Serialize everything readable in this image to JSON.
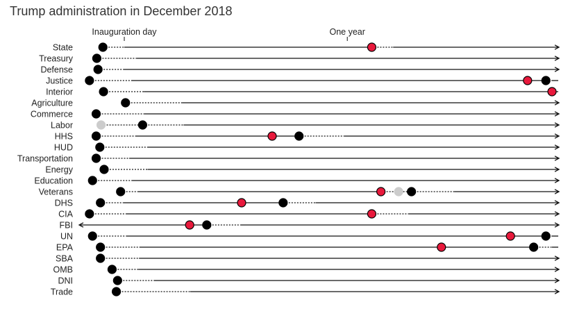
{
  "title": "Trump administration in December 2018",
  "colors": {
    "nominee": "#000000",
    "departed": "#e8193c",
    "acting": "#cccccc",
    "line": "#111111"
  },
  "chart_data": {
    "type": "timeline",
    "title": "Trump administration in December 2018",
    "x_unit": "days since inauguration",
    "xlim": [
      -30,
      700
    ],
    "reference_marks": [
      {
        "label": "Inauguration day",
        "x": 0
      },
      {
        "label": "One year",
        "x": 365
      }
    ],
    "rows": [
      {
        "agency": "State",
        "start": -35,
        "events": [
          {
            "type": "nominee",
            "x": -35
          },
          {
            "type": "departed",
            "x": 405
          }
        ],
        "dotted": [
          [
            -35,
            0
          ],
          [
            405,
            440
          ]
        ],
        "arrow_right": true
      },
      {
        "agency": "Treasury",
        "start": -45,
        "events": [
          {
            "type": "nominee",
            "x": -45
          }
        ],
        "dotted": [
          [
            -45,
            20
          ]
        ],
        "arrow_right": true
      },
      {
        "agency": "Defense",
        "start": -43,
        "events": [
          {
            "type": "nominee",
            "x": -43
          }
        ],
        "dotted": [
          [
            -43,
            -2
          ]
        ],
        "arrow_right": true
      },
      {
        "agency": "Justice",
        "start": -57,
        "events": [
          {
            "type": "nominee",
            "x": -57
          },
          {
            "type": "departed",
            "x": 660
          },
          {
            "type": "nominee",
            "x": 690
          }
        ],
        "dotted": [
          [
            -57,
            12
          ],
          [
            690,
            700
          ]
        ],
        "arrow_right": false
      },
      {
        "agency": "Interior",
        "start": -34,
        "events": [
          {
            "type": "nominee",
            "x": -34
          },
          {
            "type": "departed",
            "x": 700
          }
        ],
        "dotted": [
          [
            -34,
            32
          ]
        ],
        "arrow_right": false
      },
      {
        "agency": "Agriculture",
        "start": 2,
        "events": [
          {
            "type": "nominee",
            "x": 2
          }
        ],
        "dotted": [
          [
            2,
            95
          ]
        ],
        "arrow_right": true
      },
      {
        "agency": "Commerce",
        "start": -46,
        "events": [
          {
            "type": "nominee",
            "x": -46
          }
        ],
        "dotted": [
          [
            -46,
            32
          ]
        ],
        "arrow_right": true
      },
      {
        "agency": "Labor",
        "start": -38,
        "events": [
          {
            "type": "acting",
            "x": -38
          },
          {
            "type": "nominee",
            "x": 30
          }
        ],
        "dotted": [
          [
            -38,
            30
          ],
          [
            30,
            97
          ]
        ],
        "arrow_right": true
      },
      {
        "agency": "HHS",
        "start": -46,
        "events": [
          {
            "type": "nominee",
            "x": -46
          },
          {
            "type": "departed",
            "x": 242
          },
          {
            "type": "nominee",
            "x": 286
          }
        ],
        "dotted": [
          [
            -46,
            18
          ],
          [
            286,
            360
          ]
        ],
        "arrow_right": true
      },
      {
        "agency": "HUD",
        "start": -40,
        "events": [
          {
            "type": "nominee",
            "x": -40
          }
        ],
        "dotted": [
          [
            -40,
            38
          ]
        ],
        "arrow_right": true
      },
      {
        "agency": "Transportation",
        "start": -46,
        "events": [
          {
            "type": "nominee",
            "x": -46
          }
        ],
        "dotted": [
          [
            -46,
            8
          ]
        ],
        "arrow_right": true
      },
      {
        "agency": "Energy",
        "start": -33,
        "events": [
          {
            "type": "nominee",
            "x": -33
          }
        ],
        "dotted": [
          [
            -33,
            38
          ]
        ],
        "arrow_right": true
      },
      {
        "agency": "Education",
        "start": -52,
        "events": [
          {
            "type": "nominee",
            "x": -52
          }
        ],
        "dotted": [
          [
            -52,
            13
          ]
        ],
        "arrow_right": true
      },
      {
        "agency": "Veterans",
        "start": -6,
        "events": [
          {
            "type": "nominee",
            "x": -6
          },
          {
            "type": "departed",
            "x": 420
          },
          {
            "type": "acting",
            "x": 449
          },
          {
            "type": "nominee",
            "x": 470
          }
        ],
        "dotted": [
          [
            -6,
            22
          ],
          [
            420,
            470
          ],
          [
            470,
            540
          ]
        ],
        "arrow_right": true
      },
      {
        "agency": "DHS",
        "start": -39,
        "events": [
          {
            "type": "nominee",
            "x": -39
          },
          {
            "type": "departed",
            "x": 192
          },
          {
            "type": "nominee",
            "x": 260
          }
        ],
        "dotted": [
          [
            -39,
            -2
          ],
          [
            260,
            313
          ]
        ],
        "arrow_right": true
      },
      {
        "agency": "CIA",
        "start": -57,
        "events": [
          {
            "type": "nominee",
            "x": -57
          },
          {
            "type": "departed",
            "x": 405
          }
        ],
        "dotted": [
          [
            -57,
            3
          ],
          [
            405,
            465
          ]
        ],
        "arrow_right": true
      },
      {
        "agency": "FBI",
        "start": -30,
        "events": [
          {
            "type": "departed",
            "x": 107
          },
          {
            "type": "nominee",
            "x": 135
          }
        ],
        "dotted": [
          [
            135,
            190
          ]
        ],
        "arrow_left": true,
        "arrow_right": true
      },
      {
        "agency": "UN",
        "start": -52,
        "events": [
          {
            "type": "nominee",
            "x": -52
          },
          {
            "type": "departed",
            "x": 632
          },
          {
            "type": "nominee",
            "x": 690
          }
        ],
        "dotted": [
          [
            -52,
            3
          ],
          [
            690,
            700
          ]
        ],
        "arrow_right": false
      },
      {
        "agency": "EPA",
        "start": -39,
        "events": [
          {
            "type": "nominee",
            "x": -39
          },
          {
            "type": "departed",
            "x": 519
          },
          {
            "type": "nominee",
            "x": 670
          }
        ],
        "dotted": [
          [
            -39,
            25
          ],
          [
            670,
            700
          ]
        ],
        "arrow_right": false
      },
      {
        "agency": "SBA",
        "start": -39,
        "events": [
          {
            "type": "nominee",
            "x": -39
          }
        ],
        "dotted": [
          [
            -39,
            24
          ]
        ],
        "arrow_right": true
      },
      {
        "agency": "OMB",
        "start": -20,
        "events": [
          {
            "type": "nominee",
            "x": -20
          }
        ],
        "dotted": [
          [
            -20,
            23
          ]
        ],
        "arrow_right": true
      },
      {
        "agency": "DNI",
        "start": -11,
        "events": [
          {
            "type": "nominee",
            "x": -11
          }
        ],
        "dotted": [
          [
            -11,
            50
          ]
        ],
        "arrow_right": true
      },
      {
        "agency": "Trade",
        "start": -13,
        "events": [
          {
            "type": "nominee",
            "x": -13
          }
        ],
        "dotted": [
          [
            -13,
            108
          ]
        ],
        "arrow_right": true
      }
    ]
  }
}
